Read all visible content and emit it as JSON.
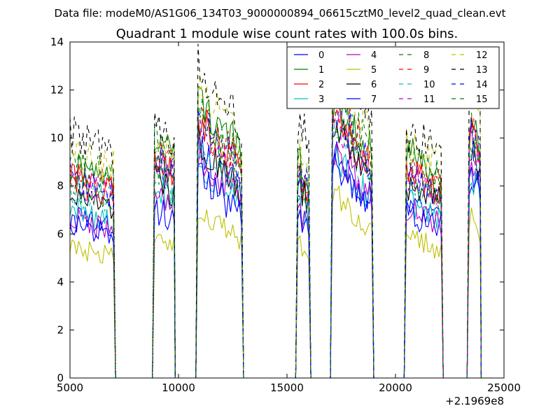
{
  "chart_data": {
    "type": "line",
    "suptitle": "Data file: modeM0/AS1G06_134T03_9000000894_06615cztM0_level2_quad_clean.evt",
    "title": "Quadrant 1 module wise count rates with 100.0s bins.",
    "xlabel": "",
    "ylabel": "",
    "x_offset_label": "+2.1969e8",
    "xlim": [
      5000,
      25000
    ],
    "ylim": [
      0,
      14
    ],
    "x_ticks": [
      5000,
      10000,
      15000,
      20000,
      25000
    ],
    "x_tick_labels": [
      "5000",
      "10000",
      "15000",
      "20000",
      "25000"
    ],
    "y_ticks": [
      0,
      2,
      4,
      6,
      8,
      10,
      12,
      14
    ],
    "y_tick_labels": [
      "0",
      "2",
      "4",
      "6",
      "8",
      "10",
      "12",
      "14"
    ],
    "grid": false,
    "legend_position": "top-right",
    "bin_seconds": 100,
    "segments": [
      {
        "start": 5000,
        "end": 7000,
        "zero_after": 7100
      },
      {
        "start": 8900,
        "end": 9800,
        "zero_after": 9850
      },
      {
        "start": 10900,
        "end": 12900,
        "zero_after": 13000
      },
      {
        "start": 15500,
        "end": 16000,
        "zero_after": 16100
      },
      {
        "start": 17100,
        "end": 18900,
        "zero_after": 19000
      },
      {
        "start": 20500,
        "end": 22100,
        "zero_after": 22200
      },
      {
        "start": 23400,
        "end": 23900,
        "zero_after": 23950
      }
    ],
    "series": [
      {
        "name": "0",
        "color": "#0000ff",
        "dashed": false,
        "levels": [
          6.4,
          9.0,
          8.2,
          6.8,
          8.0,
          7.0,
          8.0
        ]
      },
      {
        "name": "1",
        "color": "#008000",
        "dashed": false,
        "levels": [
          8.4,
          9.8,
          10.0,
          8.6,
          10.2,
          9.0,
          10.2
        ]
      },
      {
        "name": "2",
        "color": "#ff0000",
        "dashed": false,
        "levels": [
          8.0,
          8.8,
          9.2,
          8.0,
          9.4,
          8.2,
          9.8
        ]
      },
      {
        "name": "3",
        "color": "#00bfbf",
        "dashed": false,
        "levels": [
          6.8,
          7.6,
          7.6,
          6.8,
          8.0,
          7.0,
          8.2
        ]
      },
      {
        "name": "4",
        "color": "#bf00bf",
        "dashed": false,
        "levels": [
          6.4,
          7.2,
          7.8,
          6.6,
          8.2,
          6.8,
          8.6
        ]
      },
      {
        "name": "5",
        "color": "#bfbf00",
        "dashed": false,
        "levels": [
          5.2,
          5.6,
          6.0,
          5.4,
          6.6,
          5.6,
          6.4
        ]
      },
      {
        "name": "6",
        "color": "#000000",
        "dashed": false,
        "levels": [
          7.2,
          8.0,
          8.4,
          7.6,
          9.0,
          7.8,
          9.2
        ]
      },
      {
        "name": "7",
        "color": "#0000ff",
        "dashed": false,
        "levels": [
          6.2,
          6.8,
          7.2,
          6.4,
          7.6,
          6.6,
          8.4
        ]
      },
      {
        "name": "8",
        "color": "#008000",
        "dashed": true,
        "levels": [
          8.6,
          9.4,
          9.6,
          8.8,
          10.2,
          8.8,
          10.0
        ]
      },
      {
        "name": "9",
        "color": "#ff0000",
        "dashed": true,
        "levels": [
          8.2,
          9.0,
          9.4,
          8.2,
          9.8,
          8.4,
          10.4
        ]
      },
      {
        "name": "10",
        "color": "#00bfbf",
        "dashed": true,
        "levels": [
          7.6,
          8.4,
          8.4,
          7.8,
          8.8,
          7.6,
          9.0
        ]
      },
      {
        "name": "11",
        "color": "#bf00bf",
        "dashed": true,
        "levels": [
          7.8,
          8.6,
          8.8,
          8.0,
          9.2,
          8.0,
          9.6
        ]
      },
      {
        "name": "12",
        "color": "#bfbf00",
        "dashed": true,
        "levels": [
          9.2,
          9.4,
          10.4,
          9.2,
          10.8,
          9.2,
          11.6
        ]
      },
      {
        "name": "13",
        "color": "#000000",
        "dashed": true,
        "levels": [
          9.8,
          10.2,
          11.2,
          10.2,
          11.6,
          9.8,
          12.6
        ]
      },
      {
        "name": "14",
        "color": "#0000ff",
        "dashed": true,
        "levels": [
          8.0,
          8.6,
          9.2,
          8.2,
          9.6,
          8.2,
          9.8
        ]
      },
      {
        "name": "15",
        "color": "#008000",
        "dashed": true,
        "levels": [
          7.8,
          8.6,
          9.0,
          8.0,
          9.4,
          8.0,
          9.6
        ]
      }
    ]
  }
}
